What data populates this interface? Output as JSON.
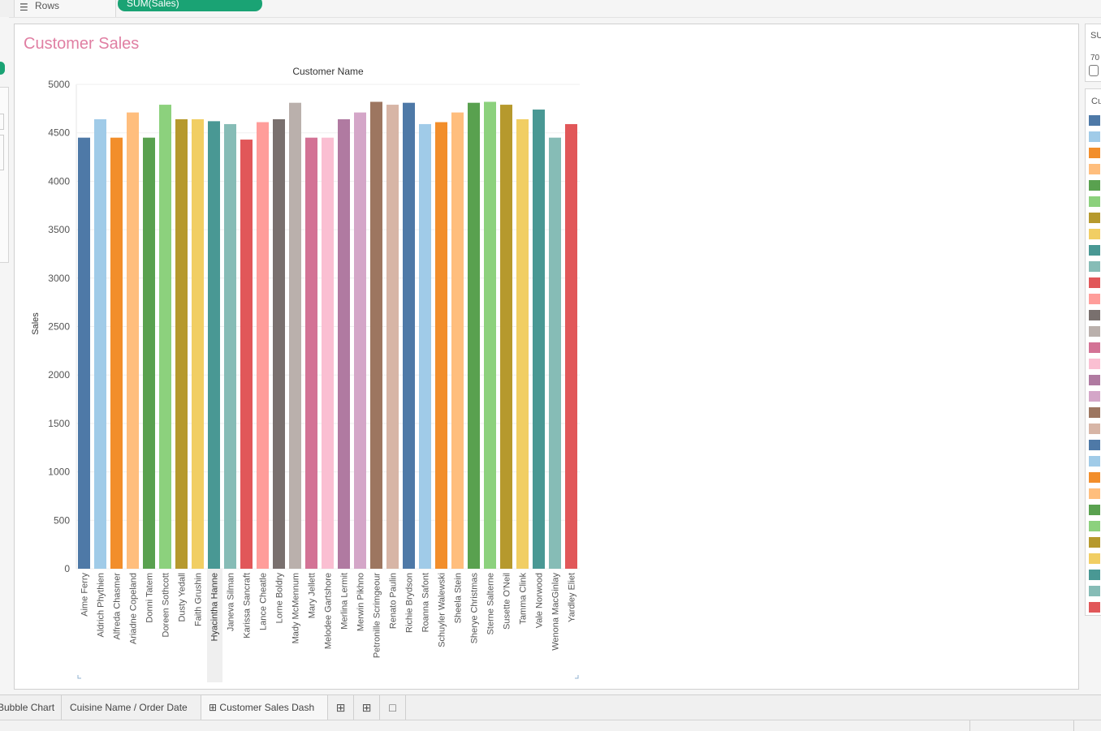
{
  "shelf": {
    "rows_label": "Rows",
    "rows_pill": "SUM(Sales)"
  },
  "card": {
    "title": "Customer Sales"
  },
  "right_panel": {
    "box_title": "SU",
    "box_value": "70",
    "legend_title": "Cu"
  },
  "tabs": {
    "bubble": "Bubble Chart",
    "cuisine": "Cuisine Name / Order Date",
    "dashboard": "Customer Sales Dash"
  },
  "colors": {
    "title": "#e07fa3",
    "pill": "#1aa374",
    "palette": [
      "#4e79a7",
      "#a0cbe8",
      "#f28e2b",
      "#ffbe7d",
      "#59a14f",
      "#8cd17d",
      "#b6992d",
      "#f1ce63",
      "#499894",
      "#86bcb6",
      "#e15759",
      "#ff9d9a",
      "#79706e",
      "#bab0ac",
      "#d37295",
      "#fabfd2",
      "#b07aa1",
      "#d4a6c8",
      "#9d7660",
      "#d7b5a6"
    ]
  },
  "chart_data": {
    "type": "bar",
    "title": "Customer Name",
    "ylabel": "Sales",
    "ylim": [
      0,
      5000
    ],
    "yticks": [
      0,
      500,
      1000,
      1500,
      2000,
      2500,
      3000,
      3500,
      4000,
      4500,
      5000
    ],
    "highlighted": "Hyacintha Hanne",
    "categories": [
      "Aime Ferry",
      "Aldrich Phythien",
      "Alfreda Chasmer",
      "Ariadne Copeland",
      "Donni Tatem",
      "Doreen Sothcott",
      "Dusty Yedall",
      "Faith Grushin",
      "Hyacintha Hanne",
      "Janeva Silman",
      "Karissa Sancraft",
      "Lance Cheatle",
      "Lorne Boldry",
      "Mady McMennum",
      "Mary Jellett",
      "Melodee Gartshore",
      "Merlina Lermit",
      "Merwin Pikhno",
      "Petronille Scrimgeour",
      "Renato Paulin",
      "Richie Brydson",
      "Roanna Safont",
      "Schuyler Walewski",
      "Sheela Stein",
      "Sherye Christmas",
      "Sterne Salterne",
      "Susette O'Neil",
      "Tamma Clink",
      "Vale Norwood",
      "Wenona MacGinlay",
      "Yardley Eliet"
    ],
    "values": [
      4450,
      4640,
      4450,
      4710,
      4450,
      4790,
      4640,
      4640,
      4620,
      4590,
      4430,
      4610,
      4640,
      4810,
      4450,
      4450,
      4640,
      4710,
      4820,
      4790,
      4810,
      4590,
      4610,
      4710,
      4810,
      4820,
      4790,
      4640,
      4740,
      4450,
      4590
    ]
  }
}
